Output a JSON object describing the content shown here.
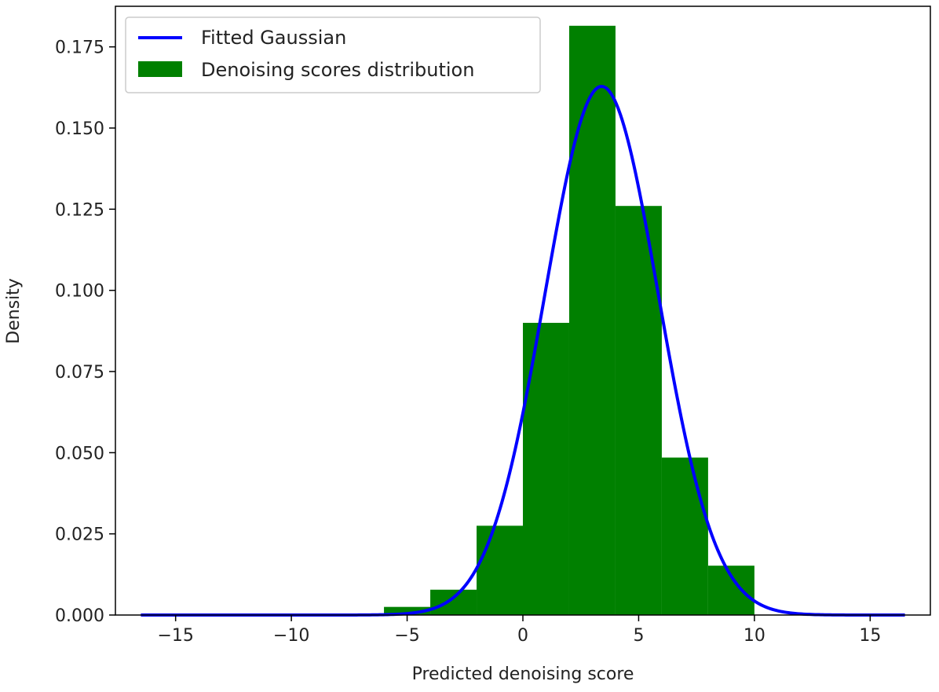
{
  "chart_data": {
    "type": "bar",
    "title": "",
    "xlabel": "Predicted denoising score",
    "ylabel": "Density",
    "xlim": [
      -17.6,
      17.6
    ],
    "ylim": [
      0,
      0.1875
    ],
    "x_ticks": [
      -15,
      -10,
      -5,
      0,
      5,
      10,
      15
    ],
    "x_tick_labels": [
      "−15",
      "−10",
      "−5",
      "0",
      "5",
      "10",
      "15"
    ],
    "y_ticks": [
      0,
      0.025,
      0.05,
      0.075,
      0.1,
      0.125,
      0.15,
      0.175
    ],
    "y_tick_labels": [
      "0.000",
      "0.025",
      "0.050",
      "0.075",
      "0.100",
      "0.125",
      "0.150",
      "0.175"
    ],
    "grid": false,
    "legend_position": "top-left",
    "histogram": {
      "name": "Denoising scores distribution",
      "color": "#008000",
      "bins": [
        {
          "x0": -6,
          "x1": -4,
          "value": 0.0025
        },
        {
          "x0": -4,
          "x1": -2,
          "value": 0.0078
        },
        {
          "x0": -2,
          "x1": 0,
          "value": 0.0275
        },
        {
          "x0": 0,
          "x1": 2,
          "value": 0.09
        },
        {
          "x0": 2,
          "x1": 4,
          "value": 0.1815
        },
        {
          "x0": 4,
          "x1": 6,
          "value": 0.126
        },
        {
          "x0": 6,
          "x1": 8,
          "value": 0.0485
        },
        {
          "x0": 8,
          "x1": 10,
          "value": 0.0152
        }
      ]
    },
    "fitted_curve": {
      "name": "Fitted Gaussian",
      "color": "#0000ff",
      "type": "gaussian",
      "mean": 3.4,
      "std": 2.45,
      "x_range": [
        -16.5,
        16.5
      ]
    }
  }
}
